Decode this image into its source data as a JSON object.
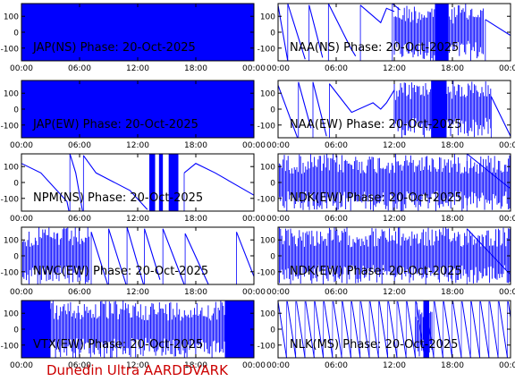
{
  "footer": "Dunedin Ultra AARDDVARK",
  "colors": {
    "trace": "#0000ff",
    "frame": "#000000",
    "footer": "#cc0000",
    "background": "#ffffff"
  },
  "chart_data": [
    {
      "type": "line",
      "title": "JAP(NS) Phase: 20-Oct-2025",
      "xlim": [
        0,
        24
      ],
      "ylim": [
        -180,
        180
      ],
      "xticklabels": [
        "00:00",
        "06:00",
        "12:00",
        "18:00",
        "00:00"
      ],
      "yticklabels": [
        "100",
        "0",
        "-100"
      ],
      "style": "saturated",
      "segments": []
    },
    {
      "type": "line",
      "title": "NAA(NS) Phase: 20-Oct-2025",
      "xlim": [
        0,
        24
      ],
      "ylim": [
        -180,
        180
      ],
      "xticklabels": [
        "00:00",
        "06:00",
        "12:00",
        "18:00",
        "00:00"
      ],
      "yticklabels": [
        "100",
        "0",
        "-100"
      ],
      "style": "noisy-wrap",
      "segments": [
        [
          [
            0,
            170
          ],
          [
            1,
            -180
          ]
        ],
        [
          [
            1,
            180
          ],
          [
            2.8,
            -170
          ]
        ],
        [
          [
            3.2,
            170
          ],
          [
            4.6,
            -160
          ]
        ],
        [
          [
            5.2,
            180
          ],
          [
            7.5,
            -100
          ],
          [
            8,
            -150
          ]
        ],
        [
          [
            8.5,
            170
          ],
          [
            10.6,
            60
          ],
          [
            11.2,
            150
          ],
          [
            12,
            130
          ]
        ],
        [
          [
            11.8,
            180
          ],
          [
            12.6,
            140
          ]
        ],
        [
          [
            21.4,
            80
          ],
          [
            24,
            -20
          ]
        ]
      ],
      "noise": [
        [
          12,
          21.2
        ]
      ],
      "blocks": [
        [
          16.2,
          17.6
        ]
      ]
    },
    {
      "type": "line",
      "title": "JAP(EW) Phase: 20-Oct-2025",
      "xlim": [
        0,
        24
      ],
      "ylim": [
        -180,
        180
      ],
      "xticklabels": [
        "00:00",
        "06:00",
        "12:00",
        "18:00",
        "00:00"
      ],
      "yticklabels": [
        "100",
        "0",
        "-100"
      ],
      "style": "saturated",
      "segments": []
    },
    {
      "type": "line",
      "title": "NAA(EW) Phase: 20-Oct-2025",
      "xlim": [
        0,
        24
      ],
      "ylim": [
        -180,
        180
      ],
      "xticklabels": [
        "00:00",
        "06:00",
        "12:00",
        "18:00",
        "00:00"
      ],
      "yticklabels": [
        "100",
        "0",
        "-100"
      ],
      "style": "noisy-wrap",
      "segments": [
        [
          [
            0,
            150
          ],
          [
            2,
            -180
          ]
        ],
        [
          [
            2.1,
            170
          ],
          [
            3.4,
            -120
          ]
        ],
        [
          [
            3.6,
            170
          ],
          [
            5,
            -170
          ]
        ],
        [
          [
            5.3,
            160
          ],
          [
            7.6,
            -20
          ],
          [
            9.8,
            40
          ],
          [
            10.6,
            0
          ],
          [
            11.2,
            40
          ],
          [
            12,
            120
          ]
        ],
        [
          [
            22,
            80
          ],
          [
            24,
            -170
          ]
        ]
      ],
      "noise": [
        [
          12,
          22
        ]
      ],
      "blocks": [
        [
          15.8,
          17.4
        ]
      ]
    },
    {
      "type": "line",
      "title": "NPM(NS) Phase: 20-Oct-2025",
      "xlim": [
        0,
        24
      ],
      "ylim": [
        -180,
        180
      ],
      "xticklabels": [
        "00:00",
        "06:00",
        "12:00",
        "18:00",
        "00:00"
      ],
      "yticklabels": [
        "100",
        "0",
        "-100"
      ],
      "style": "wrap",
      "segments": [
        [
          [
            0,
            120
          ],
          [
            2,
            60
          ],
          [
            4.7,
            -120
          ],
          [
            4.9,
            -180
          ]
        ],
        [
          [
            5,
            180
          ],
          [
            5.6,
            60
          ],
          [
            6.3,
            -180
          ]
        ],
        [
          [
            6.4,
            170
          ],
          [
            7.7,
            60
          ],
          [
            11.2,
            -50
          ],
          [
            13,
            -170
          ]
        ],
        [
          [
            16.8,
            60
          ],
          [
            18,
            120
          ],
          [
            20,
            60
          ],
          [
            24,
            -80
          ]
        ]
      ],
      "noise": [],
      "blocks": [
        [
          13.2,
          13.8
        ],
        [
          14.2,
          14.6
        ],
        [
          15.2,
          16.2
        ]
      ]
    },
    {
      "type": "line",
      "title": "NDK(EW) Phase: 20-Oct-2025",
      "xlim": [
        0,
        24
      ],
      "ylim": [
        -180,
        180
      ],
      "xticklabels": [
        "00:00",
        "06:00",
        "12:00",
        "18:00",
        "00:00"
      ],
      "yticklabels": [
        "100",
        "0",
        "-100"
      ],
      "style": "noisy-wrap",
      "segments": [
        [
          [
            19.5,
            180
          ],
          [
            24,
            -40
          ]
        ]
      ],
      "noise": [
        [
          0,
          24
        ]
      ],
      "blocks": []
    },
    {
      "type": "line",
      "title": "NWC(EW) Phase: 20-Oct-2025",
      "xlim": [
        0,
        24
      ],
      "ylim": [
        -180,
        180
      ],
      "xticklabels": [
        "00:00",
        "06:00",
        "12:00",
        "18:00",
        "00:00"
      ],
      "yticklabels": [
        "100",
        "0",
        "-100"
      ],
      "style": "wrap",
      "segments": [
        [
          [
            7.2,
            150
          ],
          [
            8.9,
            -180
          ]
        ],
        [
          [
            9,
            170
          ],
          [
            10.8,
            -180
          ]
        ],
        [
          [
            10.9,
            180
          ],
          [
            12.6,
            -180
          ]
        ],
        [
          [
            12.7,
            170
          ],
          [
            14.3,
            -150
          ]
        ],
        [
          [
            14.6,
            170
          ],
          [
            16.8,
            -180
          ]
        ],
        [
          [
            16.9,
            140
          ],
          [
            19.3,
            -180
          ]
        ],
        [
          [
            22.2,
            150
          ],
          [
            24,
            -130
          ]
        ]
      ],
      "noise": [
        [
          0,
          7
        ]
      ],
      "blocks": []
    },
    {
      "type": "line",
      "title": "NDK(EW) Phase: 20-Oct-2025",
      "xlim": [
        0,
        24
      ],
      "ylim": [
        -180,
        180
      ],
      "xticklabels": [
        "00:00",
        "06:00",
        "12:00",
        "18:00",
        "00:00"
      ],
      "yticklabels": [
        "100",
        "0",
        "-100"
      ],
      "style": "noisy-wrap",
      "segments": [
        [
          [
            19.5,
            170
          ],
          [
            24,
            -120
          ]
        ]
      ],
      "noise": [
        [
          0,
          24
        ]
      ],
      "blocks": []
    },
    {
      "type": "line",
      "title": "VTX(EW) Phase: 20-Oct-2025",
      "xlim": [
        0,
        24
      ],
      "ylim": [
        -180,
        180
      ],
      "xticklabels": [
        "00:00",
        "06:00",
        "12:00",
        "18:00",
        "00:00"
      ],
      "yticklabels": [
        "100",
        "0",
        "-100"
      ],
      "style": "saturated-gaps",
      "segments": [],
      "noise": [
        [
          3,
          21
        ]
      ],
      "blocks": [
        [
          0,
          3
        ],
        [
          21,
          24
        ]
      ]
    },
    {
      "type": "line",
      "title": "NLK(MS) Phase: 20-Oct-2025",
      "xlim": [
        0,
        24
      ],
      "ylim": [
        -180,
        180
      ],
      "xticklabels": [
        "00:00",
        "06:00",
        "12:00",
        "18:00",
        "00:00"
      ],
      "yticklabels": [
        "100",
        "0",
        "-100"
      ],
      "style": "sawtooth",
      "segments": [],
      "noise": [
        [
          14.2,
          16
        ]
      ],
      "blocks": [
        [
          15,
          15.6
        ]
      ],
      "sawtooth": {
        "period": 0.95,
        "from": 0,
        "to": 24
      }
    }
  ]
}
